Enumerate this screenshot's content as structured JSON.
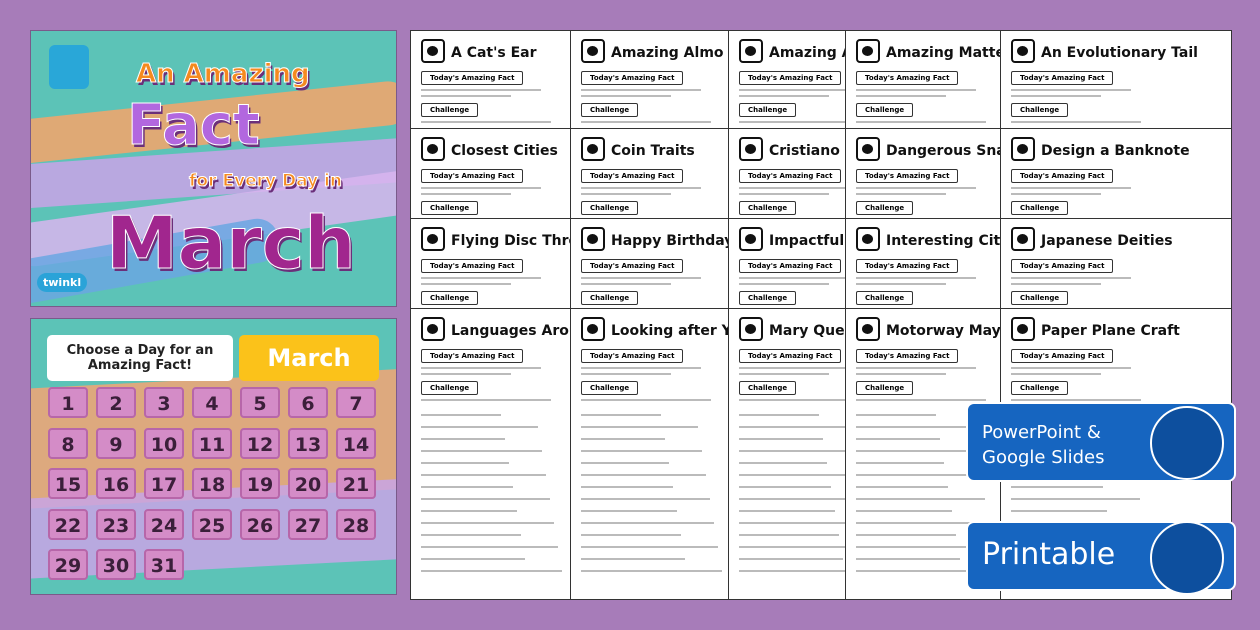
{
  "cover": {
    "line1": "An Amazing",
    "line2": "Fact",
    "line3": "for Every Day in",
    "line4": "March",
    "logo": "twinkl"
  },
  "calendar": {
    "prompt": "Choose a Day for an Amazing Fact!",
    "month": "March",
    "days": [
      "1",
      "2",
      "3",
      "4",
      "5",
      "6",
      "7",
      "8",
      "9",
      "10",
      "11",
      "12",
      "13",
      "14",
      "15",
      "16",
      "17",
      "18",
      "19",
      "20",
      "21",
      "22",
      "23",
      "24",
      "25",
      "26",
      "27",
      "28",
      "29",
      "30",
      "31"
    ]
  },
  "worksheet_labels": {
    "fact": "Today's Amazing Fact",
    "challenge": "Challenge"
  },
  "worksheets": [
    "A Cat's Ear",
    "Amazing Almo",
    "Amazing A",
    "Amazing Matter",
    "An Evolutionary Tail",
    "Closest Cities",
    "Coin Traits",
    "Cristiano",
    "Dangerous Snakes of",
    "Design a Banknote",
    "Flying Disc Throw",
    "Happy Birthday to",
    "Impactful",
    "Interesting Cit",
    "Japanese Deities",
    "Languages Around the",
    "Looking after Yo",
    "Mary Quee",
    "Motorway Mayh",
    "Paper Plane Craft"
  ],
  "badges": {
    "slides": "PowerPoint & Google Slides",
    "printable": "Printable"
  }
}
